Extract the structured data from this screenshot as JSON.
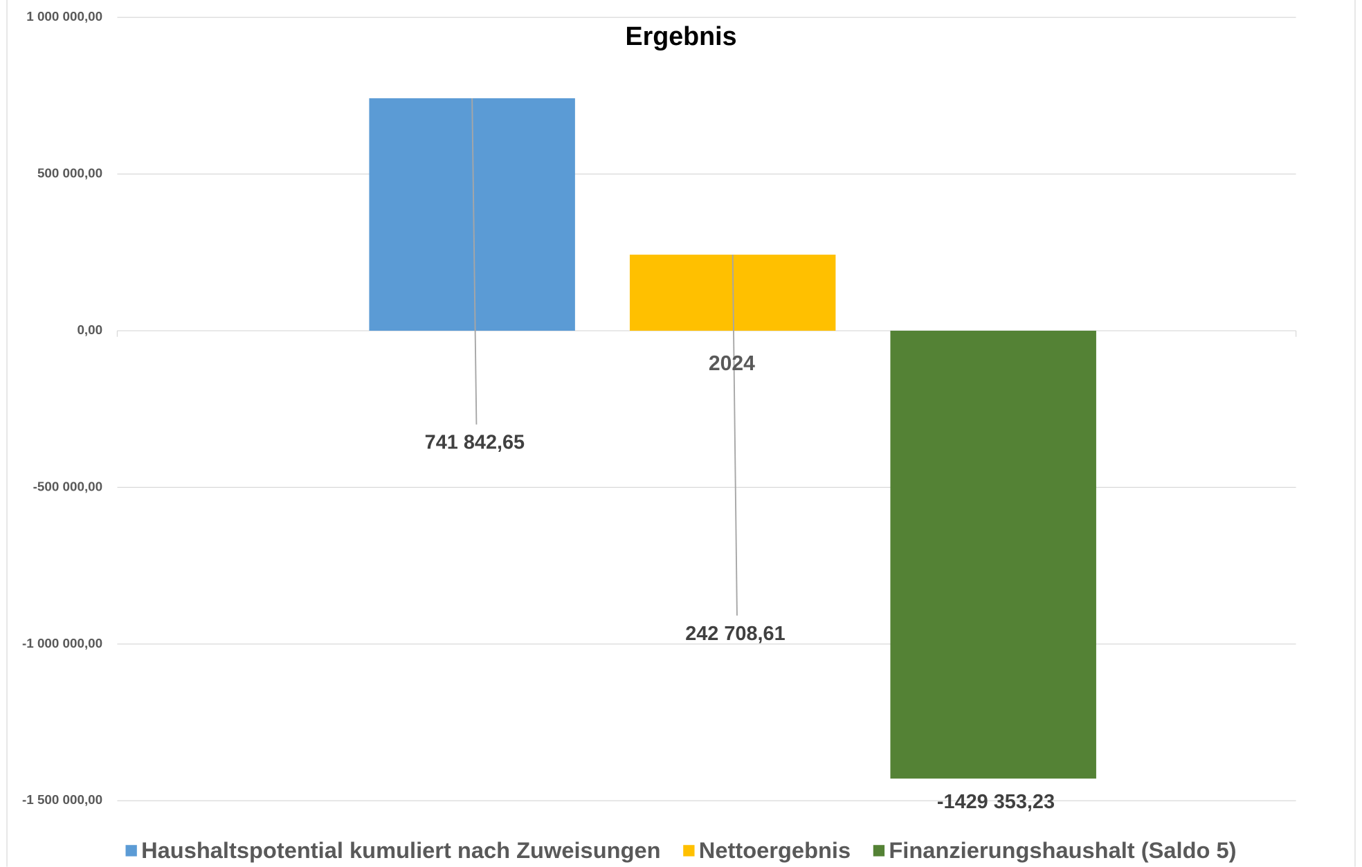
{
  "chart_data": {
    "type": "bar",
    "title": "Ergebnis",
    "categories": [
      "2024"
    ],
    "series": [
      {
        "name": "Haushaltspotential kumuliert nach Zuweisungen",
        "color": "#5b9bd5",
        "values": [
          741842.65
        ],
        "value_labels": [
          "741 842,65"
        ]
      },
      {
        "name": "Nettoergebnis",
        "color": "#ffc000",
        "values": [
          242708.61
        ],
        "value_labels": [
          "242 708,61"
        ]
      },
      {
        "name": "Finanzierungshaushalt (Saldo 5)",
        "color": "#548235",
        "values": [
          -1429353.23
        ],
        "value_labels": [
          "-1429 353,23"
        ]
      }
    ],
    "ylim": [
      -1500000,
      1000000
    ],
    "yticks": [
      {
        "value": -1500000,
        "label": "-1 500 000,00"
      },
      {
        "value": -1000000,
        "label": "-1 000 000,00"
      },
      {
        "value": -500000,
        "label": "-500 000,00"
      },
      {
        "value": 0,
        "label": "0,00"
      },
      {
        "value": 500000,
        "label": "500 000,00"
      },
      {
        "value": 1000000,
        "label": "1 000 000,00"
      }
    ],
    "grid": true,
    "legend": "bottom"
  }
}
